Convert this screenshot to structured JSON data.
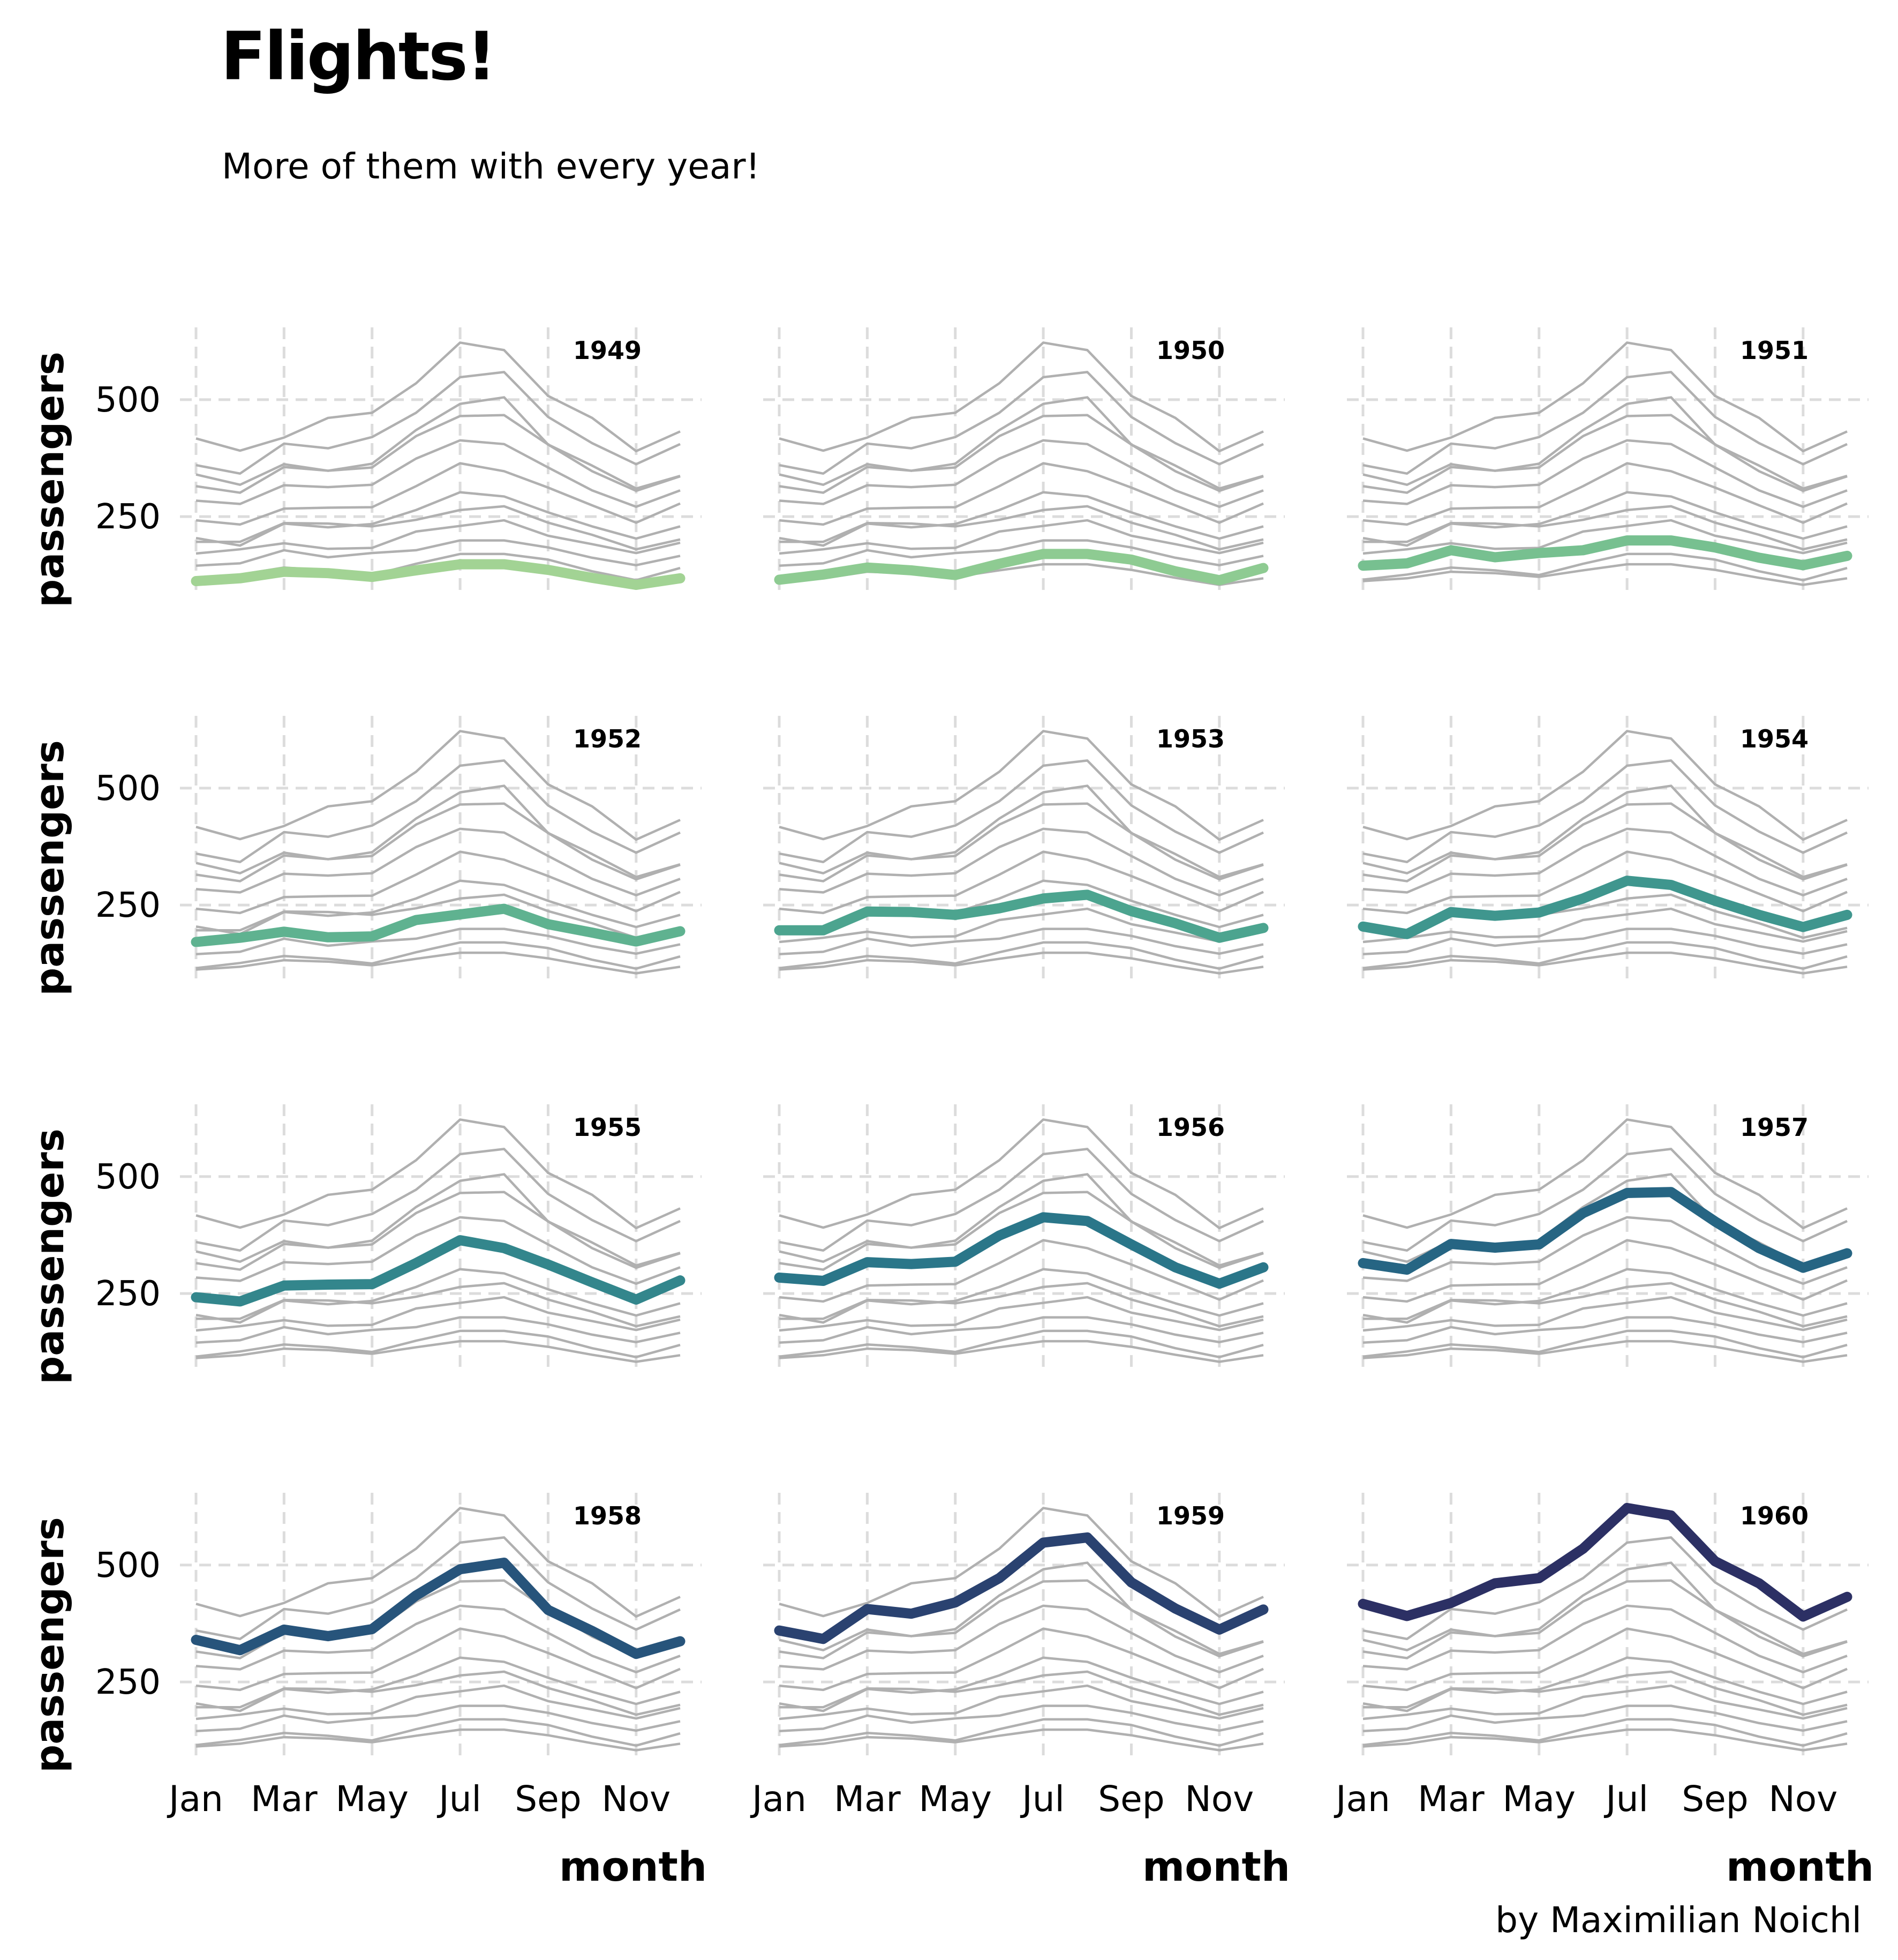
{
  "header": {
    "title": "Flights!",
    "subtitle": "More of them with every year!"
  },
  "caption": "by Maximilian Noichl",
  "chart_data": {
    "type": "line",
    "layout": "small-multiples 4x3, one highlighted year per panel over all years in grey",
    "xlabel": "month",
    "ylabel": "passengers",
    "x_tick_labels": [
      "Jan",
      "Mar",
      "May",
      "Jul",
      "Sep",
      "Nov"
    ],
    "y_ticks": [
      250,
      500
    ],
    "ylim": [
      100,
      650
    ],
    "grid": "dashed vertical and horizontal",
    "months": [
      "Jan",
      "Feb",
      "Mar",
      "Apr",
      "May",
      "Jun",
      "Jul",
      "Aug",
      "Sep",
      "Oct",
      "Nov",
      "Dec"
    ],
    "series": [
      {
        "name": "1949",
        "color": "#a2d394",
        "values": [
          112,
          118,
          132,
          129,
          121,
          135,
          148,
          148,
          136,
          119,
          104,
          118
        ]
      },
      {
        "name": "1950",
        "color": "#8ecb92",
        "values": [
          115,
          126,
          141,
          135,
          125,
          149,
          170,
          170,
          158,
          133,
          114,
          140
        ]
      },
      {
        "name": "1951",
        "color": "#77c090",
        "values": [
          145,
          150,
          178,
          163,
          172,
          178,
          199,
          199,
          184,
          162,
          146,
          166
        ]
      },
      {
        "name": "1952",
        "color": "#5fb290",
        "values": [
          171,
          180,
          193,
          181,
          183,
          218,
          230,
          242,
          209,
          191,
          172,
          194
        ]
      },
      {
        "name": "1953",
        "color": "#4ca48f",
        "values": [
          196,
          196,
          236,
          235,
          229,
          243,
          264,
          272,
          237,
          211,
          180,
          201
        ]
      },
      {
        "name": "1954",
        "color": "#3f968e",
        "values": [
          204,
          188,
          235,
          227,
          234,
          264,
          302,
          293,
          259,
          229,
          203,
          229
        ]
      },
      {
        "name": "1955",
        "color": "#33868c",
        "values": [
          242,
          233,
          267,
          269,
          270,
          315,
          364,
          347,
          312,
          274,
          237,
          278
        ]
      },
      {
        "name": "1956",
        "color": "#2a7689",
        "values": [
          284,
          277,
          317,
          313,
          318,
          374,
          413,
          405,
          355,
          306,
          271,
          306
        ]
      },
      {
        "name": "1957",
        "color": "#266583",
        "values": [
          315,
          301,
          356,
          348,
          355,
          422,
          465,
          467,
          404,
          347,
          305,
          336
        ]
      },
      {
        "name": "1958",
        "color": "#27547b",
        "values": [
          340,
          318,
          362,
          348,
          363,
          435,
          491,
          505,
          404,
          359,
          310,
          337
        ]
      },
      {
        "name": "1959",
        "color": "#2a4270",
        "values": [
          360,
          342,
          406,
          396,
          420,
          472,
          548,
          559,
          463,
          407,
          362,
          405
        ]
      },
      {
        "name": "1960",
        "color": "#2c3064",
        "values": [
          417,
          391,
          419,
          461,
          472,
          535,
          622,
          606,
          508,
          461,
          390,
          432
        ]
      }
    ]
  }
}
